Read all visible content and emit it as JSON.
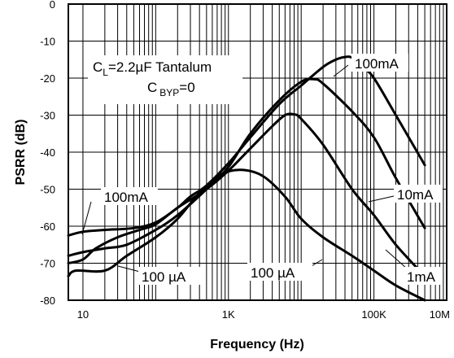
{
  "chart_data": {
    "type": "line",
    "title": "",
    "xlabel": "Frequency (Hz)",
    "ylabel": "PSRR (dB)",
    "x_scale": "log",
    "xlim": [
      6.3,
      1000000
    ],
    "ylim": [
      -80,
      0
    ],
    "x_ticks": [
      {
        "value": 10,
        "label": "10"
      },
      {
        "value": 1000,
        "label": "1K"
      },
      {
        "value": 100000,
        "label": "100K"
      },
      {
        "value": 10000000,
        "label": "10M"
      }
    ],
    "y_ticks": [
      0,
      -10,
      -20,
      -30,
      -40,
      -50,
      -60,
      -70,
      -80
    ],
    "grid": true,
    "conditions": {
      "line1_main": "C",
      "line1_sub": "L",
      "line1_rest": "=2.2µF Tantalum",
      "line2_main": "C",
      "line2_sub": "BYP",
      "line2_rest": "=0"
    },
    "series": [
      {
        "name": "100mA",
        "points": [
          [
            6.3,
            -62.5
          ],
          [
            10,
            -61.5
          ],
          [
            20,
            -61
          ],
          [
            50,
            -60.5
          ],
          [
            100,
            -59
          ],
          [
            200,
            -55
          ],
          [
            300,
            -52
          ],
          [
            500,
            -49
          ],
          [
            1000,
            -43
          ],
          [
            2000,
            -36
          ],
          [
            5000,
            -27
          ],
          [
            10000,
            -22
          ],
          [
            20000,
            -17
          ],
          [
            30000,
            -15
          ],
          [
            40000,
            -14.3
          ],
          [
            50000,
            -14.5
          ],
          [
            70000,
            -17
          ],
          [
            100000,
            -20
          ],
          [
            200000,
            -30
          ],
          [
            500000,
            -43.5
          ]
        ]
      },
      {
        "name": "10mA",
        "points": [
          [
            6.3,
            -68
          ],
          [
            10,
            -67
          ],
          [
            20,
            -66
          ],
          [
            40,
            -65
          ],
          [
            100,
            -61
          ],
          [
            200,
            -57
          ],
          [
            500,
            -50
          ],
          [
            1000,
            -44
          ],
          [
            2000,
            -35
          ],
          [
            5000,
            -26
          ],
          [
            10000,
            -21
          ],
          [
            15000,
            -20.3
          ],
          [
            20000,
            -21.5
          ],
          [
            50000,
            -29
          ],
          [
            100000,
            -36
          ],
          [
            200000,
            -47
          ],
          [
            500000,
            -60.5
          ]
        ]
      },
      {
        "name": "1mA",
        "points": [
          [
            6.3,
            -70
          ],
          [
            10,
            -69
          ],
          [
            15,
            -66
          ],
          [
            30,
            -63
          ],
          [
            60,
            -61
          ],
          [
            100,
            -59.5
          ],
          [
            200,
            -55
          ],
          [
            500,
            -50
          ],
          [
            1000,
            -45
          ],
          [
            2000,
            -39
          ],
          [
            4000,
            -33
          ],
          [
            6000,
            -30
          ],
          [
            8000,
            -29.8
          ],
          [
            10000,
            -31
          ],
          [
            20000,
            -38
          ],
          [
            50000,
            -50
          ],
          [
            100000,
            -57
          ],
          [
            200000,
            -65
          ],
          [
            500000,
            -73.5
          ]
        ]
      },
      {
        "name": "100 µA",
        "points": [
          [
            6.3,
            -73.5
          ],
          [
            8,
            -72
          ],
          [
            20,
            -72
          ],
          [
            40,
            -68
          ],
          [
            100,
            -63
          ],
          [
            200,
            -58
          ],
          [
            400,
            -51
          ],
          [
            800,
            -46
          ],
          [
            1500,
            -44.8
          ],
          [
            3000,
            -46.5
          ],
          [
            6000,
            -52
          ],
          [
            10000,
            -58
          ],
          [
            20000,
            -63
          ],
          [
            50000,
            -68
          ],
          [
            100000,
            -72
          ],
          [
            200000,
            -76
          ],
          [
            500000,
            -80
          ]
        ]
      }
    ],
    "annotations": [
      {
        "text": "100mA",
        "target": "100mA"
      },
      {
        "text": "10mA",
        "target": "10mA"
      },
      {
        "text": "1mA",
        "target": "1mA"
      },
      {
        "text": "100mA",
        "target": "100mA"
      },
      {
        "text": "100 µA",
        "target": "100 µA"
      },
      {
        "text": "100 µA",
        "target": "100 µA"
      }
    ]
  }
}
